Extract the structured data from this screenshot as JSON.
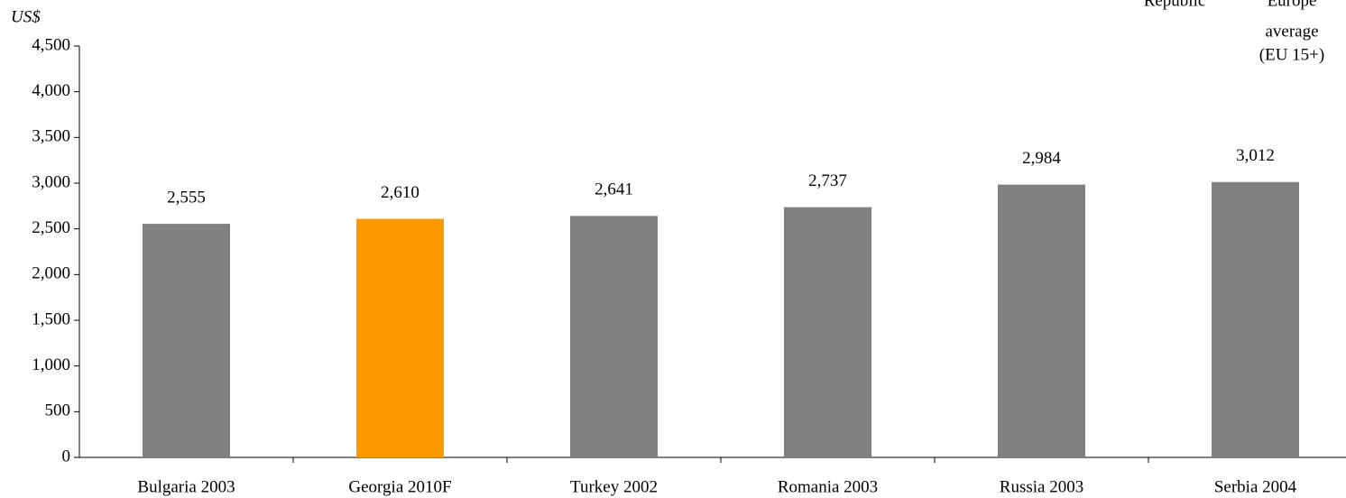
{
  "chart_data": {
    "type": "bar",
    "y_axis_label": "US$",
    "annotations": [
      "Republic",
      "Europe",
      "average",
      "(EU 15+)"
    ],
    "categories": [
      "Bulgaria 2003",
      "Georgia 2010F",
      "Turkey 2002",
      "Romania 2003",
      "Russia 2003",
      "Serbia 2004"
    ],
    "values": [
      2555,
      2610,
      2641,
      2737,
      2984,
      3012
    ],
    "value_labels": [
      "2,555",
      "2,610",
      "2,641",
      "2,737",
      "2,984",
      "3,012"
    ],
    "colors": [
      "#808080",
      "#ff9900",
      "#808080",
      "#808080",
      "#808080",
      "#808080"
    ],
    "ylim": [
      0,
      4500
    ],
    "yticks": [
      0,
      500,
      {
        "value": 1000,
        "label": "1,000"
      },
      {
        "value": 1500,
        "label": "1,500"
      },
      {
        "value": 2000,
        "label": "2,000"
      },
      {
        "value": 2500,
        "label": "2,500"
      },
      {
        "value": 3000,
        "label": "3,000"
      },
      {
        "value": 3500,
        "label": "3,500"
      },
      {
        "value": 4000,
        "label": "4,000"
      },
      {
        "value": 4500,
        "label": "4,500"
      }
    ],
    "grid": false
  }
}
